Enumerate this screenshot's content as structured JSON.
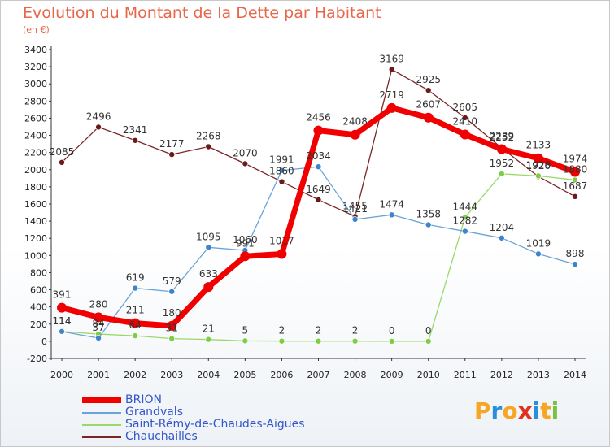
{
  "title": "Evolution du Montant de la Dette par Habitant",
  "subtitle": "(en €)",
  "logo": "Proxiti",
  "chart_data": {
    "type": "line",
    "x": [
      "2000",
      "2001",
      "2002",
      "2003",
      "2004",
      "2005",
      "2006",
      "2007",
      "2008",
      "2009",
      "2010",
      "2011",
      "2012",
      "2013",
      "2014"
    ],
    "ylim": [
      -200,
      3400
    ],
    "yticks": [
      -200,
      0,
      200,
      400,
      600,
      800,
      1000,
      1200,
      1400,
      1600,
      1800,
      2000,
      2200,
      2400,
      2600,
      2800,
      3000,
      3200,
      3400
    ],
    "grid": false,
    "legend_position": "bottom-left",
    "series": [
      {
        "name": "Chauchailles",
        "color": "#7a2626",
        "marker": "#6b1a1a",
        "width": 1.3,
        "r": 3.5,
        "values": [
          2085,
          2496,
          2341,
          2177,
          2268,
          2070,
          1860,
          1649,
          1455,
          3169,
          2925,
          2605,
          2252,
          1920,
          1687
        ]
      },
      {
        "name": "Saint-Rémy-de-Chaudes-Aigues",
        "color": "#9ad86a",
        "marker": "#7fcc45",
        "width": 1.3,
        "r": 3.5,
        "values": [
          114,
          84,
          64,
          31,
          21,
          5,
          2,
          2,
          2,
          0,
          0,
          1444,
          1952,
          1928,
          1880
        ]
      },
      {
        "name": "Grandvals",
        "color": "#6aa3d8",
        "marker": "#3f84c8",
        "width": 1.3,
        "r": 3.5,
        "values": [
          114,
          37,
          619,
          579,
          1095,
          1060,
          1991,
          2034,
          1421,
          1474,
          1358,
          1282,
          1204,
          1019,
          898
        ]
      },
      {
        "name": "BRION",
        "color": "#f00000",
        "marker": "#f00000",
        "width": 7,
        "r": 6,
        "values": [
          391,
          280,
          211,
          180,
          633,
          991,
          1017,
          2456,
          2408,
          2719,
          2607,
          2410,
          2239,
          2133,
          1974
        ]
      }
    ]
  }
}
